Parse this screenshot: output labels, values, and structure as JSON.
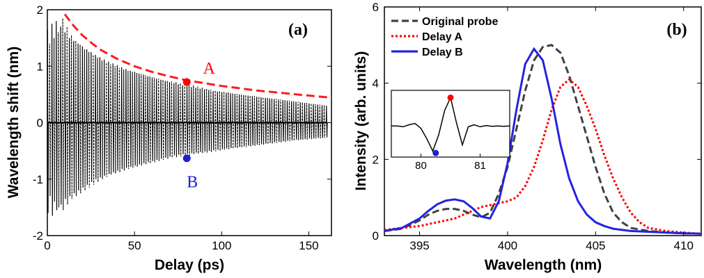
{
  "chart_data": [
    {
      "panel": "(a)",
      "type": "line",
      "xlabel": "Delay (ps)",
      "ylabel": "Wavelength shift (nm)",
      "xlim": [
        0,
        163
      ],
      "ylim": [
        -2,
        2
      ],
      "xticks": [
        0,
        50,
        100,
        150
      ],
      "yticks": [
        -2,
        -1,
        0,
        1,
        2
      ],
      "grid": false,
      "series": [
        {
          "style": "solid-black",
          "x": [
            0,
            2.5,
            5,
            7.5,
            10,
            12.5,
            15,
            17.5,
            20,
            22.5,
            25,
            27.5,
            30,
            32.5,
            35,
            37.5,
            40,
            42.5,
            45,
            47.5,
            50,
            52.5,
            55,
            57.5,
            60,
            62.5,
            65,
            67.5,
            70,
            72.5,
            75,
            77.5,
            80,
            82.5,
            85,
            87.5,
            90,
            92.5,
            95,
            97.5,
            100,
            102.5,
            105,
            107.5,
            110,
            112.5,
            115,
            117.5,
            120,
            122.5,
            125,
            127.5,
            130,
            132.5,
            135,
            137.5,
            140,
            142.5,
            145,
            147.5,
            150,
            152.5,
            155,
            157.5,
            160
          ],
          "peak": [
            1.65,
            1.75,
            1.8,
            1.7,
            1.6,
            1.5,
            1.45,
            1.4,
            1.35,
            1.3,
            1.25,
            1.2,
            1.16,
            1.12,
            1.08,
            1.05,
            1.02,
            0.98,
            0.95,
            0.92,
            0.9,
            0.87,
            0.85,
            0.82,
            0.8,
            0.78,
            0.76,
            0.74,
            0.72,
            0.7,
            0.68,
            0.66,
            0.65,
            0.63,
            0.62,
            0.6,
            0.59,
            0.58,
            0.56,
            0.55,
            0.54,
            0.53,
            0.52,
            0.51,
            0.5,
            0.49,
            0.48,
            0.47,
            0.46,
            0.45,
            0.44,
            0.43,
            0.42,
            0.41,
            0.4,
            0.39,
            0.38,
            0.37,
            0.36,
            0.35,
            0.34,
            0.33,
            0.32,
            0.31,
            0.3
          ],
          "trough": [
            -1.6,
            -1.65,
            -1.55,
            -1.45,
            -1.35,
            -1.3,
            -1.25,
            -1.2,
            -1.15,
            -1.1,
            -1.05,
            -1.0,
            -0.97,
            -0.94,
            -0.91,
            -0.88,
            -0.85,
            -0.82,
            -0.8,
            -0.78,
            -0.76,
            -0.74,
            -0.72,
            -0.7,
            -0.68,
            -0.66,
            -0.64,
            -0.62,
            -0.6,
            -0.58,
            -0.57,
            -0.56,
            -0.55,
            -0.54,
            -0.53,
            -0.52,
            -0.51,
            -0.5,
            -0.49,
            -0.48,
            -0.47,
            -0.46,
            -0.45,
            -0.44,
            -0.43,
            -0.42,
            -0.41,
            -0.4,
            -0.39,
            -0.38,
            -0.37,
            -0.36,
            -0.35,
            -0.34,
            -0.33,
            -0.32,
            -0.31,
            -0.3,
            -0.3,
            -0.29,
            -0.28,
            -0.28,
            -0.27,
            -0.27,
            -0.26
          ]
        },
        {
          "style": "dashed-black",
          "x": [
            1.2,
            3.7,
            6.2,
            8.7,
            11.2,
            13.7,
            16.2,
            18.7,
            21.2,
            23.7,
            26.2,
            28.7,
            31.2,
            33.7,
            36.2,
            38.7,
            41.2,
            43.7,
            46.2,
            48.7,
            51.2,
            53.7,
            56.2,
            58.7,
            61.2,
            63.7,
            66.2,
            68.7,
            71.2,
            73.7,
            76.2,
            78.7,
            81.2,
            83.7,
            86.2,
            88.7,
            91.2,
            93.7,
            96.2,
            98.7,
            101.2,
            103.7,
            106.2,
            108.7,
            111.2,
            113.7,
            116.2,
            118.7,
            121.2,
            123.7,
            126.2,
            128.7,
            131.2,
            133.7,
            136.2,
            138.7,
            141.2,
            143.7,
            146.2,
            148.7,
            151.2,
            153.7,
            156.2,
            158.7
          ],
          "peak": [
            1.4,
            1.5,
            1.6,
            1.85,
            1.7,
            1.55,
            1.45,
            1.38,
            1.3,
            1.25,
            1.2,
            1.15,
            1.1,
            1.06,
            1.03,
            1.0,
            0.97,
            0.94,
            0.92,
            0.9,
            0.88,
            0.86,
            0.84,
            0.82,
            0.8,
            0.78,
            0.76,
            0.74,
            0.73,
            0.72,
            0.7,
            0.7,
            0.68,
            0.66,
            0.64,
            0.62,
            0.6,
            0.58,
            0.57,
            0.56,
            0.55,
            0.54,
            0.52,
            0.51,
            0.5,
            0.49,
            0.48,
            0.47,
            0.46,
            0.45,
            0.44,
            0.43,
            0.42,
            0.41,
            0.4,
            0.39,
            0.38,
            0.37,
            0.36,
            0.35,
            0.34,
            0.33,
            0.32,
            0.31
          ],
          "trough": [
            -1.3,
            -1.4,
            -1.5,
            -1.55,
            -1.45,
            -1.35,
            -1.3,
            -1.25,
            -1.2,
            -1.15,
            -1.1,
            -1.05,
            -1.0,
            -0.96,
            -0.92,
            -0.9,
            -0.88,
            -0.85,
            -0.82,
            -0.8,
            -0.78,
            -0.76,
            -0.74,
            -0.72,
            -0.7,
            -0.68,
            -0.66,
            -0.64,
            -0.62,
            -0.61,
            -0.6,
            -0.6,
            -0.58,
            -0.56,
            -0.55,
            -0.54,
            -0.53,
            -0.52,
            -0.51,
            -0.5,
            -0.48,
            -0.47,
            -0.46,
            -0.45,
            -0.44,
            -0.43,
            -0.42,
            -0.41,
            -0.4,
            -0.39,
            -0.38,
            -0.37,
            -0.36,
            -0.35,
            -0.34,
            -0.33,
            -0.32,
            -0.31,
            -0.3,
            -0.3,
            -0.29,
            -0.28,
            -0.28,
            -0.27
          ]
        },
        {
          "style": "dashed-red-envelope",
          "x": [
            10,
            15,
            20,
            25,
            30,
            40,
            50,
            60,
            70,
            80,
            90,
            100,
            110,
            120,
            130,
            140,
            150,
            160,
            163
          ],
          "y": [
            1.92,
            1.72,
            1.55,
            1.42,
            1.3,
            1.13,
            1.0,
            0.9,
            0.82,
            0.75,
            0.7,
            0.65,
            0.61,
            0.57,
            0.54,
            0.51,
            0.48,
            0.45,
            0.44
          ]
        }
      ],
      "markers": [
        {
          "label": "A",
          "x": 80,
          "y": 0.72,
          "color": "#ff0000"
        },
        {
          "label": "B",
          "x": 80,
          "y": -0.63,
          "color": "#1f1fd6"
        }
      ]
    },
    {
      "panel": "(b)",
      "type": "line",
      "xlabel": "Wavelength (nm)",
      "ylabel": "Intensity (arb. units)",
      "xlim": [
        393,
        411
      ],
      "ylim": [
        0,
        6
      ],
      "xticks": [
        395,
        400,
        405,
        410
      ],
      "yticks": [
        0,
        2,
        4,
        6
      ],
      "legend_position": "top-left",
      "series": [
        {
          "name": "Original probe",
          "color": "#404040",
          "style": "dashed",
          "x": [
            393,
            394,
            395,
            395.5,
            396,
            396.5,
            397,
            397.5,
            398,
            398.5,
            399,
            399.5,
            400,
            400.5,
            401,
            401.5,
            402,
            402.5,
            403,
            403.5,
            404,
            404.5,
            405,
            405.5,
            406,
            406.5,
            407,
            408,
            409,
            410,
            411
          ],
          "y": [
            0.12,
            0.18,
            0.4,
            0.55,
            0.65,
            0.7,
            0.7,
            0.65,
            0.55,
            0.48,
            0.6,
            1.1,
            1.8,
            2.8,
            3.8,
            4.6,
            4.95,
            5.0,
            4.8,
            4.2,
            3.4,
            2.6,
            1.8,
            1.1,
            0.6,
            0.35,
            0.2,
            0.12,
            0.08,
            0.06,
            0.05
          ]
        },
        {
          "name": "Delay A",
          "color": "#ff0000",
          "style": "dotted",
          "x": [
            393,
            394,
            395,
            396,
            397,
            397.5,
            398,
            398.5,
            399,
            399.5,
            400,
            400.5,
            401,
            401.5,
            402,
            402.5,
            403,
            403.5,
            404,
            404.5,
            405,
            405.5,
            406,
            406.5,
            407,
            407.5,
            408,
            409,
            410,
            411
          ],
          "y": [
            0.15,
            0.2,
            0.25,
            0.35,
            0.45,
            0.55,
            0.65,
            0.75,
            0.8,
            0.85,
            0.9,
            1.0,
            1.3,
            1.8,
            2.5,
            3.3,
            3.9,
            4.1,
            3.9,
            3.4,
            2.8,
            2.1,
            1.5,
            1.0,
            0.6,
            0.35,
            0.2,
            0.12,
            0.08,
            0.05
          ]
        },
        {
          "name": "Delay B",
          "color": "#2323e0",
          "style": "solid",
          "x": [
            393,
            394,
            395,
            395.5,
            396,
            396.5,
            397,
            397.5,
            398,
            398.5,
            399,
            399.5,
            400,
            400.5,
            401,
            401.5,
            402,
            402.5,
            403,
            403.5,
            404,
            404.5,
            405,
            405.5,
            406,
            407,
            408,
            409,
            410,
            411
          ],
          "y": [
            0.12,
            0.2,
            0.45,
            0.65,
            0.82,
            0.92,
            0.95,
            0.9,
            0.72,
            0.5,
            0.45,
            0.9,
            1.9,
            3.3,
            4.5,
            4.9,
            4.6,
            3.6,
            2.4,
            1.5,
            0.9,
            0.55,
            0.35,
            0.25,
            0.18,
            0.12,
            0.1,
            0.08,
            0.06,
            0.05
          ]
        }
      ],
      "inset": {
        "xlim": [
          79.5,
          81.5
        ],
        "xticks": [
          80,
          81
        ],
        "x": [
          79.5,
          79.6,
          79.7,
          79.8,
          79.9,
          80.0,
          80.1,
          80.2,
          80.3,
          80.4,
          80.5,
          80.6,
          80.7,
          80.8,
          80.9,
          81.0,
          81.1,
          81.2,
          81.3,
          81.4,
          81.5
        ],
        "y": [
          0.02,
          0.02,
          0.0,
          0.05,
          0.08,
          -0.04,
          -0.3,
          -0.6,
          -0.2,
          0.4,
          0.72,
          0.1,
          -0.45,
          0.0,
          0.05,
          0.0,
          0.03,
          0.01,
          0.02,
          0.01,
          0.02
        ],
        "ylim": [
          -0.75,
          0.9
        ],
        "markers": [
          {
            "x": 80.5,
            "y": 0.72,
            "color": "#ff0000"
          },
          {
            "x": 80.25,
            "y": -0.65,
            "color": "#1f1fd6"
          }
        ]
      }
    }
  ]
}
